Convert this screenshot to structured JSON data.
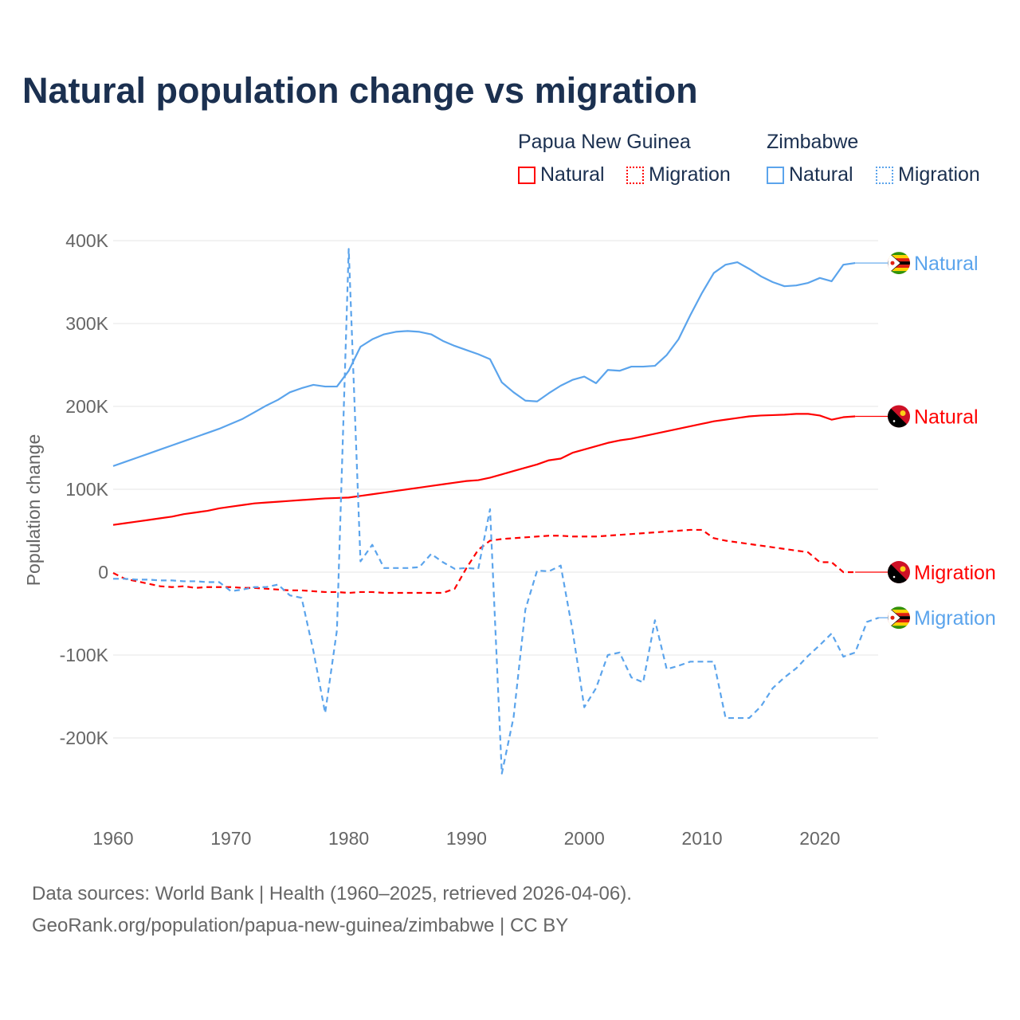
{
  "title": "Natural population change vs migration",
  "legend": {
    "groups": [
      {
        "name": "Papua New Guinea",
        "items": [
          {
            "label": "Natural",
            "style": "solid"
          },
          {
            "label": "Migration",
            "style": "dotted"
          }
        ],
        "color": "#ff0000"
      },
      {
        "name": "Zimbabwe",
        "items": [
          {
            "label": "Natural",
            "style": "solid"
          },
          {
            "label": "Migration",
            "style": "dotted"
          }
        ],
        "color": "#5ba4ec"
      }
    ]
  },
  "footer": {
    "line1": "Data sources: World Bank | Health (1960–2025, retrieved 2026-04-06).",
    "line2": "GeoRank.org/population/papua-new-guinea/zimbabwe | CC BY"
  },
  "chart_data": {
    "type": "line",
    "title": "Natural population change vs migration",
    "xlabel": "",
    "ylabel": "Population change",
    "xlim": [
      1960,
      2025
    ],
    "ylim": [
      -250000,
      400000
    ],
    "x_ticks": [
      1960,
      1970,
      1980,
      1990,
      2000,
      2010,
      2020
    ],
    "x_tick_labels": [
      "1960",
      "1970",
      "1980",
      "1990",
      "2000",
      "2010",
      "2020"
    ],
    "y_ticks": [
      400000,
      300000,
      200000,
      100000,
      0,
      -100000,
      -200000
    ],
    "y_tick_labels": [
      "400K",
      "300K",
      "200K",
      "100K",
      "0",
      "-100K",
      "-200K"
    ],
    "grid": true,
    "series": [
      {
        "name": "Zimbabwe Natural",
        "end_label": "Natural",
        "color": "#5ba4ec",
        "dash": "solid",
        "flag": "zimbabwe",
        "start": 1960,
        "values_k": [
          128,
          133,
          138,
          143,
          148,
          153,
          158,
          163,
          168,
          173,
          179,
          185,
          193,
          201,
          208,
          217,
          222,
          226,
          224,
          224,
          243,
          272,
          281,
          287,
          290,
          291,
          290,
          287,
          279,
          273,
          268,
          263,
          257,
          229,
          217,
          207,
          206,
          216,
          225,
          232,
          236,
          228,
          244,
          243,
          248,
          248,
          249,
          262,
          281,
          310,
          337,
          361,
          371,
          374,
          366,
          357,
          350,
          345,
          346,
          349,
          355,
          351,
          371,
          373
        ]
      },
      {
        "name": "Papua New Guinea Natural",
        "end_label": "Natural",
        "color": "#ff0000",
        "dash": "solid",
        "flag": "png",
        "start": 1960,
        "values_k": [
          57,
          59,
          61,
          63,
          65,
          67,
          70,
          72,
          74,
          77,
          79,
          81,
          83,
          84,
          85,
          86,
          87,
          88,
          89,
          89.5,
          90,
          92,
          94,
          96,
          98,
          100,
          102,
          104,
          106,
          108,
          110,
          111,
          114,
          118,
          122,
          126,
          130,
          135,
          137,
          144,
          148,
          152,
          156,
          159,
          161,
          164,
          167,
          170,
          173,
          176,
          179,
          182,
          184,
          186,
          188,
          189,
          189.5,
          190,
          191,
          191,
          189,
          184,
          187,
          188
        ]
      },
      {
        "name": "Papua New Guinea Migration",
        "end_label": "Migration",
        "color": "#ff0000",
        "dash": "dashed",
        "flag": "png",
        "start": 1960,
        "values_k": [
          -1,
          -8,
          -11,
          -14,
          -17,
          -18,
          -17,
          -19,
          -18,
          -18,
          -18,
          -19,
          -19,
          -20,
          -21,
          -22,
          -22,
          -23,
          -24,
          -24,
          -25,
          -24,
          -24,
          -25,
          -25,
          -25,
          -25,
          -25,
          -25,
          -20,
          5,
          27,
          38,
          40,
          41,
          42,
          43,
          44,
          44,
          43,
          43,
          43,
          44,
          45,
          46,
          47,
          48,
          49,
          50,
          51,
          51,
          41,
          38,
          36,
          34,
          32,
          30,
          28,
          26,
          24,
          12,
          12,
          0,
          0
        ]
      },
      {
        "name": "Zimbabwe Migration",
        "end_label": "Migration",
        "color": "#5ba4ec",
        "dash": "dashed",
        "flag": "zimbabwe",
        "start": 1960,
        "values_k": [
          -8,
          -8,
          -9,
          -9,
          -10,
          -10,
          -11,
          -11,
          -12,
          -12,
          -23,
          -21,
          -18,
          -18,
          -15,
          -28,
          -31,
          -95,
          -170,
          -70,
          390,
          13,
          33,
          5,
          5,
          5,
          6,
          22,
          12,
          4,
          5,
          4,
          76,
          -243,
          -175,
          -45,
          2,
          1,
          8,
          -70,
          -163,
          -140,
          -100,
          -97,
          -127,
          -133,
          -58,
          -117,
          -113,
          -108,
          -108,
          -108,
          -176,
          -176,
          -176,
          -162,
          -140,
          -127,
          -116,
          -101,
          -88,
          -74,
          -102,
          -97,
          -60,
          -55
        ]
      }
    ]
  }
}
